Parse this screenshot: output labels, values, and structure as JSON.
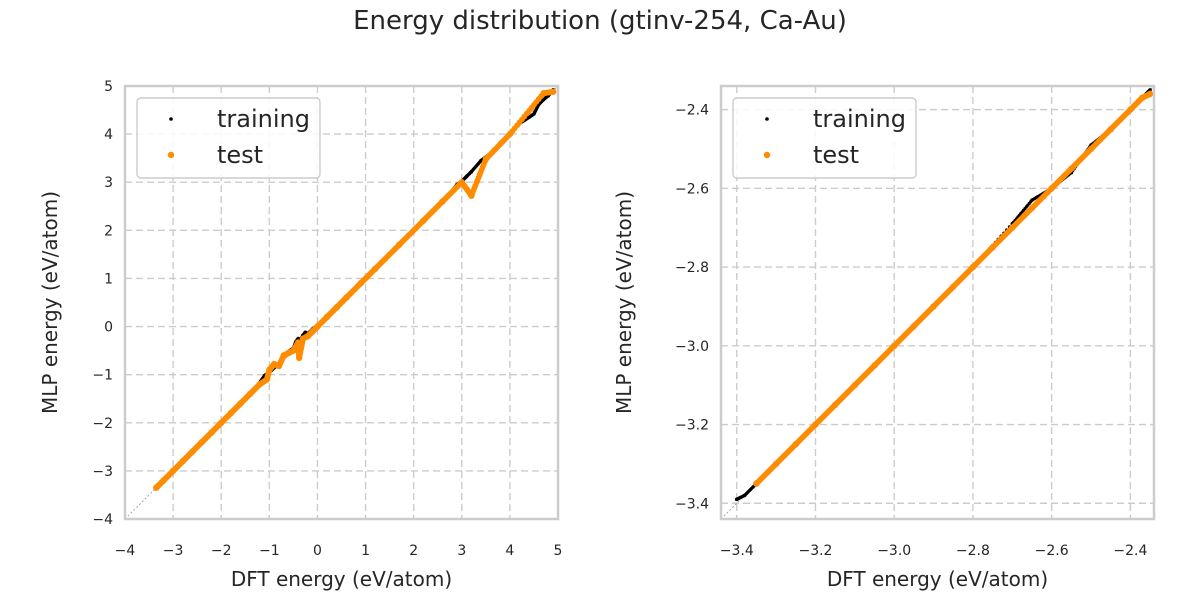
{
  "figure": {
    "title": "Energy distribution (gtinv-254, Ca-Au)"
  },
  "chart_data": [
    {
      "type": "scatter",
      "xlabel": "DFT energy (eV/atom)",
      "ylabel": "MLP energy (eV/atom)",
      "xlim": [
        -4,
        5
      ],
      "ylim": [
        -4,
        5
      ],
      "xticks": [
        -4,
        -3,
        -2,
        -1,
        0,
        1,
        2,
        3,
        4,
        5
      ],
      "yticks": [
        -4,
        -3,
        -2,
        -1,
        0,
        1,
        2,
        3,
        4,
        5
      ],
      "xtick_labels": [
        "−4",
        "−3",
        "−2",
        "−1",
        "0",
        "1",
        "2",
        "3",
        "4",
        "5"
      ],
      "ytick_labels": [
        "−4",
        "−3",
        "−2",
        "−1",
        "0",
        "1",
        "2",
        "3",
        "4",
        "5"
      ],
      "grid": true,
      "reference_line": "y = x",
      "legend_position": "top-left",
      "series": [
        {
          "name": "training",
          "color": "#000000",
          "points": [
            [
              -3.35,
              -3.35
            ],
            [
              -3.1,
              -3.09
            ],
            [
              -2.8,
              -2.81
            ],
            [
              -2.5,
              -2.5
            ],
            [
              -2.2,
              -2.2
            ],
            [
              -1.9,
              -1.89
            ],
            [
              -1.6,
              -1.61
            ],
            [
              -1.3,
              -1.3
            ],
            [
              -1.1,
              -1.02
            ],
            [
              -1.0,
              -0.95
            ],
            [
              -0.9,
              -0.85
            ],
            [
              -0.75,
              -0.72
            ],
            [
              -0.6,
              -0.52
            ],
            [
              -0.5,
              -0.45
            ],
            [
              -0.45,
              -0.32
            ],
            [
              -0.4,
              -0.25
            ],
            [
              -0.35,
              -0.27
            ],
            [
              -0.3,
              -0.18
            ],
            [
              -0.25,
              -0.12
            ],
            [
              -0.2,
              -0.15
            ],
            [
              -0.1,
              -0.05
            ],
            [
              0.0,
              0.02
            ],
            [
              0.2,
              0.21
            ],
            [
              0.4,
              0.41
            ],
            [
              0.6,
              0.6
            ],
            [
              0.8,
              0.82
            ],
            [
              1.0,
              1.01
            ],
            [
              1.2,
              1.22
            ],
            [
              1.4,
              1.41
            ],
            [
              1.6,
              1.61
            ],
            [
              1.8,
              1.82
            ],
            [
              2.0,
              2.02
            ],
            [
              2.2,
              2.22
            ],
            [
              2.4,
              2.42
            ],
            [
              2.6,
              2.62
            ],
            [
              2.8,
              2.82
            ],
            [
              2.9,
              2.95
            ],
            [
              3.0,
              3.02
            ],
            [
              3.1,
              3.12
            ],
            [
              3.2,
              3.22
            ],
            [
              3.4,
              3.45
            ],
            [
              3.6,
              3.6
            ],
            [
              3.8,
              3.82
            ],
            [
              4.0,
              4.02
            ],
            [
              4.2,
              4.22
            ],
            [
              4.4,
              4.35
            ],
            [
              4.5,
              4.42
            ],
            [
              4.6,
              4.62
            ],
            [
              4.7,
              4.72
            ],
            [
              4.8,
              4.8
            ],
            [
              4.9,
              4.92
            ]
          ]
        },
        {
          "name": "test",
          "color": "#ff8c00",
          "points": [
            [
              -3.35,
              -3.35
            ],
            [
              -3.2,
              -3.2
            ],
            [
              -3.0,
              -3.0
            ],
            [
              -2.8,
              -2.8
            ],
            [
              -2.6,
              -2.6
            ],
            [
              -2.4,
              -2.4
            ],
            [
              -2.2,
              -2.2
            ],
            [
              -2.0,
              -2.0
            ],
            [
              -1.8,
              -1.8
            ],
            [
              -1.6,
              -1.6
            ],
            [
              -1.4,
              -1.4
            ],
            [
              -1.2,
              -1.2
            ],
            [
              -1.05,
              -1.1
            ],
            [
              -1.0,
              -0.9
            ],
            [
              -0.9,
              -0.78
            ],
            [
              -0.8,
              -0.82
            ],
            [
              -0.7,
              -0.6
            ],
            [
              -0.6,
              -0.55
            ],
            [
              -0.5,
              -0.5
            ],
            [
              -0.4,
              -0.33
            ],
            [
              -0.38,
              -0.65
            ],
            [
              -0.3,
              -0.25
            ],
            [
              -0.2,
              -0.2
            ],
            [
              -0.1,
              -0.1
            ],
            [
              0.0,
              0.0
            ],
            [
              0.2,
              0.2
            ],
            [
              0.4,
              0.4
            ],
            [
              0.6,
              0.6
            ],
            [
              0.9,
              0.9
            ],
            [
              1.2,
              1.2
            ],
            [
              1.7,
              1.7
            ],
            [
              2.2,
              2.2
            ],
            [
              2.6,
              2.6
            ],
            [
              3.0,
              3.0
            ],
            [
              3.2,
              2.72
            ],
            [
              3.5,
              3.48
            ],
            [
              4.0,
              4.0
            ],
            [
              4.7,
              4.85
            ],
            [
              4.9,
              4.88
            ]
          ]
        }
      ]
    },
    {
      "type": "scatter",
      "xlabel": "DFT energy (eV/atom)",
      "ylabel": "MLP energy (eV/atom)",
      "xlim": [
        -3.44,
        -2.34
      ],
      "ylim": [
        -3.44,
        -2.34
      ],
      "xticks": [
        -3.4,
        -3.2,
        -3.0,
        -2.8,
        -2.6,
        -2.4
      ],
      "yticks": [
        -3.4,
        -3.2,
        -3.0,
        -2.8,
        -2.6,
        -2.4
      ],
      "xtick_labels": [
        "−3.4",
        "−3.2",
        "−3.0",
        "−2.8",
        "−2.6",
        "−2.4"
      ],
      "ytick_labels": [
        "−3.4",
        "−3.2",
        "−3.0",
        "−2.8",
        "−2.6",
        "−2.4"
      ],
      "grid": true,
      "reference_line": "y = x",
      "legend_position": "top-left",
      "series": [
        {
          "name": "training",
          "color": "#000000",
          "points": [
            [
              -3.4,
              -3.39
            ],
            [
              -3.38,
              -3.38
            ],
            [
              -3.35,
              -3.35
            ],
            [
              -3.3,
              -3.3
            ],
            [
              -3.2,
              -3.2
            ],
            [
              -3.1,
              -3.1
            ],
            [
              -3.0,
              -3.0
            ],
            [
              -2.9,
              -2.9
            ],
            [
              -2.8,
              -2.8
            ],
            [
              -2.7,
              -2.69
            ],
            [
              -2.65,
              -2.63
            ],
            [
              -2.6,
              -2.6
            ],
            [
              -2.55,
              -2.56
            ],
            [
              -2.5,
              -2.49
            ],
            [
              -2.45,
              -2.45
            ],
            [
              -2.42,
              -2.42
            ],
            [
              -2.4,
              -2.4
            ],
            [
              -2.38,
              -2.38
            ],
            [
              -2.36,
              -2.36
            ],
            [
              -2.35,
              -2.35
            ]
          ]
        },
        {
          "name": "test",
          "color": "#ff8c00",
          "points": [
            [
              -3.35,
              -3.35
            ],
            [
              -3.3,
              -3.3
            ],
            [
              -3.25,
              -3.25
            ],
            [
              -3.2,
              -3.2
            ],
            [
              -3.15,
              -3.15
            ],
            [
              -3.1,
              -3.1
            ],
            [
              -3.05,
              -3.05
            ],
            [
              -3.0,
              -3.0
            ],
            [
              -2.95,
              -2.95
            ],
            [
              -2.9,
              -2.9
            ],
            [
              -2.85,
              -2.85
            ],
            [
              -2.8,
              -2.8
            ],
            [
              -2.75,
              -2.75
            ],
            [
              -2.7,
              -2.7
            ],
            [
              -2.65,
              -2.65
            ],
            [
              -2.6,
              -2.6
            ],
            [
              -2.55,
              -2.55
            ],
            [
              -2.5,
              -2.5
            ],
            [
              -2.45,
              -2.45
            ],
            [
              -2.4,
              -2.4
            ],
            [
              -2.37,
              -2.37
            ],
            [
              -2.35,
              -2.36
            ]
          ]
        }
      ]
    }
  ]
}
